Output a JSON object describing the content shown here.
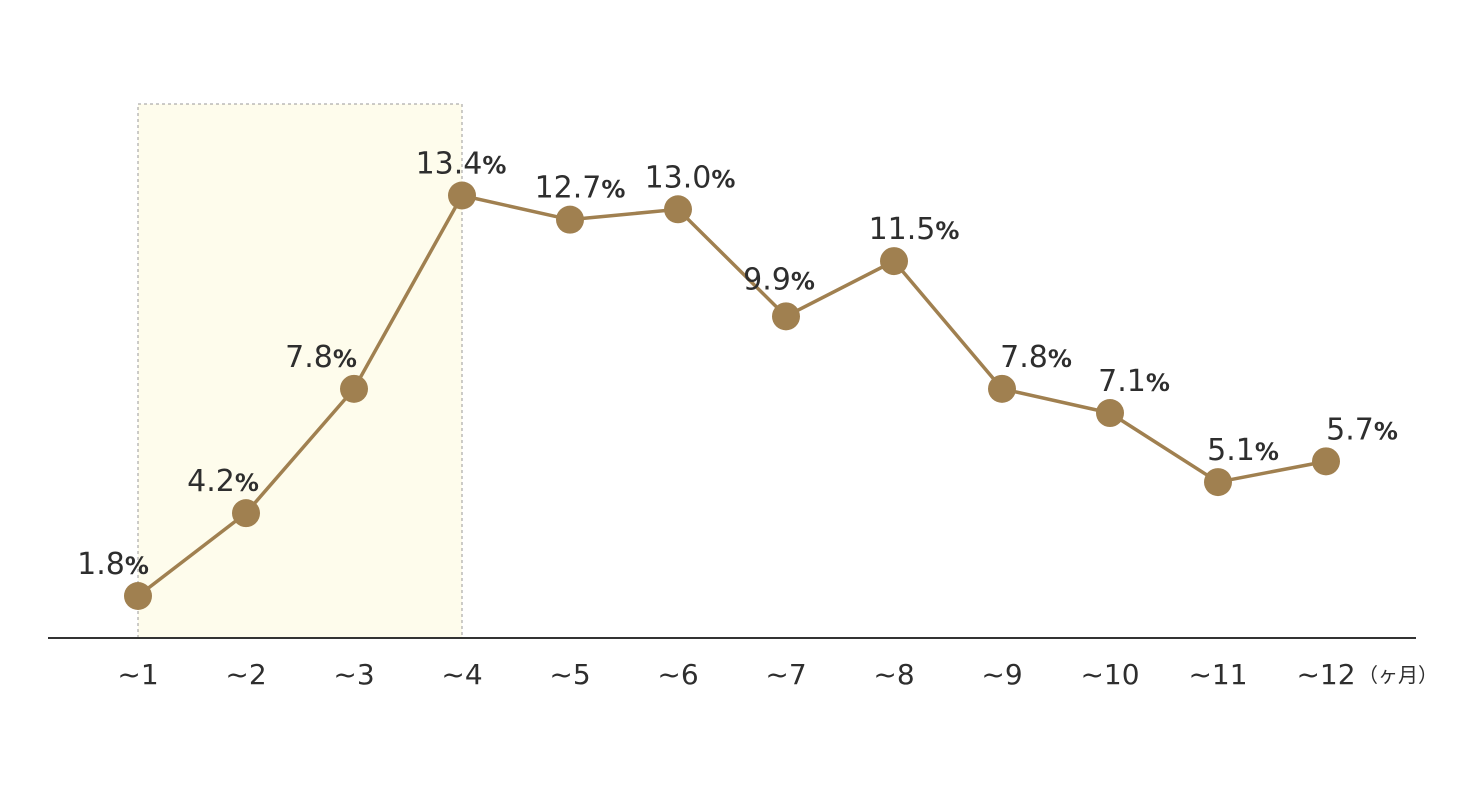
{
  "chart_data": {
    "type": "line",
    "x": [
      "~1",
      "~2",
      "~3",
      "~4",
      "~5",
      "~6",
      "~7",
      "~8",
      "~9",
      "~10",
      "~11",
      "~12"
    ],
    "values": [
      1.8,
      4.2,
      7.8,
      13.4,
      12.7,
      13.0,
      9.9,
      11.5,
      7.8,
      7.1,
      5.1,
      5.7
    ],
    "labels": [
      "1.8",
      "4.2",
      "7.8",
      "13.4",
      "12.7",
      "13.0",
      "9.9",
      "11.5",
      "7.8",
      "7.1",
      "5.1",
      "5.7"
    ],
    "value_suffix": "%",
    "x_unit": "（ヶ月）",
    "ylim": [
      1.0,
      14.0
    ],
    "highlight_range": [
      "~1",
      "~4"
    ],
    "grid": false,
    "colors": {
      "line": "#a08050",
      "marker": "#a08050",
      "highlight_fill": "#fefcec",
      "highlight_border": "#999999",
      "axis": "#333333",
      "text": "#2e2e2e"
    }
  }
}
